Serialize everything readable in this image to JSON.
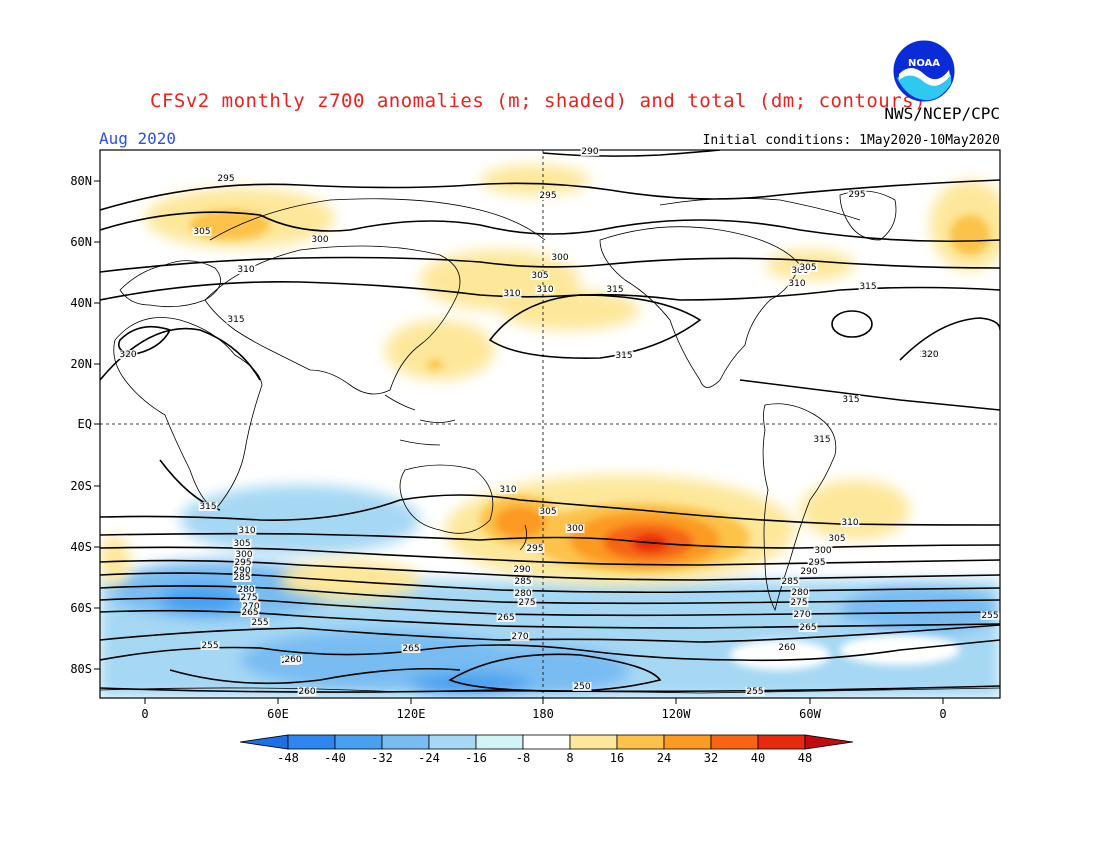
{
  "header": {
    "title": "CFSv2 monthly z700 anomalies (m; shaded) and total (dm; contours)",
    "agency": "NWS/NCEP/CPC",
    "month": "Aug 2020",
    "initial_conditions": "Initial conditions: 1May2020-10May2020",
    "logo_text": "NOAA"
  },
  "axes": {
    "lat_labels": [
      "80N",
      "60N",
      "40N",
      "20N",
      "EQ",
      "20S",
      "40S",
      "60S",
      "80S"
    ],
    "lon_labels": [
      "0",
      "60E",
      "120E",
      "180",
      "120W",
      "60W",
      "0"
    ]
  },
  "colorbar": {
    "ticks": [
      "-48",
      "-40",
      "-32",
      "-24",
      "-16",
      "-8",
      "8",
      "16",
      "24",
      "32",
      "40",
      "48"
    ],
    "colors": [
      "#1e6ee6",
      "#2e86ee",
      "#4aa0f0",
      "#78bcf2",
      "#a6d8f4",
      "#d2f4f6",
      "#ffffff",
      "#fde79a",
      "#fcc24a",
      "#fc9a22",
      "#f66414",
      "#e52a10",
      "#c00c0c"
    ]
  },
  "contour_labels": [
    "295",
    "305",
    "300",
    "310",
    "315",
    "320",
    "295",
    "305",
    "310",
    "290",
    "300",
    "310",
    "315",
    "315",
    "320",
    "300",
    "305",
    "310",
    "315",
    "295",
    "320",
    "315",
    "315",
    "315",
    "310",
    "305",
    "300",
    "295",
    "290",
    "285",
    "280",
    "275",
    "270",
    "265",
    "260",
    "255",
    "255",
    "260",
    "265",
    "250",
    "260",
    "255",
    "310",
    "305",
    "300",
    "295",
    "290",
    "285",
    "280",
    "275",
    "270",
    "265",
    "310",
    "305",
    "300",
    "295",
    "290",
    "285",
    "280",
    "275",
    "270",
    "265",
    "260",
    "255"
  ],
  "anomaly_regions": [
    {
      "name": "north-atlantic-europe-positive",
      "level": "8-16"
    },
    {
      "name": "south-pacific-positive-max",
      "level": "40-48"
    },
    {
      "name": "southern-ocean-negative",
      "level": "-16 to -32"
    }
  ]
}
